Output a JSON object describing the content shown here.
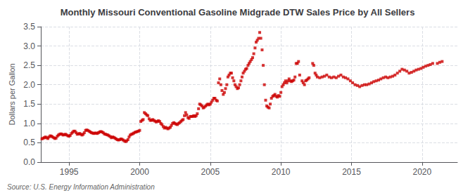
{
  "chart_data": {
    "type": "scatter",
    "title": "Monthly Missouri Conventional Gasoline Midgrade DTW Sales Price by All Sellers",
    "ylabel": "Dollars per Gallon",
    "annotations": [
      "Source: U.S. Energy Information Administration"
    ],
    "color": "#cc0000",
    "marker": "square",
    "grid": true,
    "xlim": [
      1993.0,
      2022.5
    ],
    "ylim": [
      0.0,
      3.5
    ],
    "xticks": [
      1995,
      2000,
      2005,
      2010,
      2015,
      2020
    ],
    "yticks": [
      {
        "value": 0.0,
        "label": "0.0"
      },
      0.5,
      {
        "value": 1.0,
        "label": "1.0"
      },
      1.5,
      {
        "value": 2.0,
        "label": "2.0"
      },
      2.5,
      {
        "value": 3.0,
        "label": "3.0"
      },
      3.5
    ],
    "x": [
      1993.08,
      1993.17,
      1993.25,
      1993.33,
      1993.42,
      1993.5,
      1993.58,
      1993.67,
      1993.75,
      1993.83,
      1993.92,
      1994.0,
      1994.08,
      1994.17,
      1994.25,
      1994.33,
      1994.42,
      1994.5,
      1994.58,
      1994.67,
      1994.75,
      1994.83,
      1994.92,
      1995.0,
      1995.08,
      1995.17,
      1995.25,
      1995.33,
      1995.42,
      1995.5,
      1995.58,
      1995.67,
      1995.75,
      1995.83,
      1995.92,
      1996.0,
      1996.08,
      1996.17,
      1996.25,
      1996.33,
      1996.42,
      1996.5,
      1996.58,
      1996.67,
      1996.75,
      1996.83,
      1996.92,
      1997.0,
      1997.08,
      1997.17,
      1997.25,
      1997.33,
      1997.42,
      1997.5,
      1997.58,
      1997.67,
      1997.75,
      1997.83,
      1997.92,
      1998.0,
      1998.08,
      1998.17,
      1998.25,
      1998.33,
      1998.42,
      1998.5,
      1998.58,
      1998.67,
      1998.75,
      1998.83,
      1998.92,
      1999.0,
      1999.08,
      1999.17,
      1999.25,
      1999.33,
      1999.42,
      1999.5,
      1999.58,
      1999.67,
      1999.75,
      1999.83,
      1999.92,
      2000.0,
      2000.08,
      2000.17,
      2000.25,
      2000.33,
      2000.42,
      2000.5,
      2000.58,
      2000.67,
      2000.75,
      2000.83,
      2000.92,
      2001.0,
      2001.08,
      2001.17,
      2001.25,
      2001.33,
      2001.42,
      2001.5,
      2001.58,
      2001.67,
      2001.75,
      2001.83,
      2001.92,
      2002.0,
      2002.08,
      2002.17,
      2002.25,
      2002.33,
      2002.42,
      2002.5,
      2002.58,
      2002.67,
      2002.75,
      2002.83,
      2002.92,
      2003.0,
      2003.08,
      2003.17,
      2003.25,
      2003.33,
      2003.42,
      2003.5,
      2003.58,
      2003.67,
      2003.75,
      2003.83,
      2003.92,
      2004.0,
      2004.08,
      2004.17,
      2004.25,
      2004.33,
      2004.42,
      2004.5,
      2004.58,
      2004.67,
      2004.75,
      2004.83,
      2004.92,
      2005.0,
      2005.08,
      2005.17,
      2005.25,
      2005.33,
      2005.42,
      2005.5,
      2005.58,
      2005.67,
      2005.75,
      2005.83,
      2005.92,
      2006.0,
      2006.08,
      2006.17,
      2006.25,
      2006.33,
      2006.42,
      2006.5,
      2006.58,
      2006.67,
      2006.75,
      2006.83,
      2006.92,
      2007.0,
      2007.08,
      2007.17,
      2007.25,
      2007.33,
      2007.42,
      2007.5,
      2007.58,
      2007.67,
      2007.75,
      2007.83,
      2007.92,
      2008.0,
      2008.08,
      2008.17,
      2008.25,
      2008.33,
      2008.42,
      2008.5,
      2008.58,
      2008.67,
      2008.75,
      2008.83,
      2008.92,
      2009.0,
      2009.08,
      2009.17,
      2009.25,
      2009.33,
      2009.42,
      2009.5,
      2009.58,
      2009.67,
      2009.75,
      2009.83,
      2009.92,
      2010.0,
      2010.08,
      2010.17,
      2010.25,
      2010.33,
      2010.42,
      2010.5,
      2010.58,
      2010.67,
      2010.75,
      2010.83,
      2010.92,
      2011.0,
      2011.08,
      2011.17,
      2011.25,
      2011.33,
      2011.5,
      2011.58,
      2011.67,
      2011.75,
      2011.83,
      2011.92,
      2012.0,
      2012.25,
      2012.33,
      2012.42,
      2012.5,
      2012.58,
      2012.75,
      2012.92,
      2013.08,
      2013.25,
      2013.42,
      2013.58,
      2013.75,
      2013.92,
      2014.08,
      2014.25,
      2014.42,
      2014.58,
      2014.75,
      2014.92,
      2015.08,
      2015.25,
      2015.42,
      2015.58,
      2015.75,
      2015.92,
      2016.08,
      2016.25,
      2016.42,
      2016.58,
      2016.75,
      2016.92,
      2017.08,
      2017.25,
      2017.42,
      2017.58,
      2017.75,
      2017.92,
      2018.08,
      2018.25,
      2018.42,
      2018.58,
      2018.75,
      2018.92,
      2019.08,
      2019.25,
      2019.42,
      2019.58,
      2019.75,
      2019.92,
      2020.08,
      2020.25,
      2020.42,
      2020.58,
      2020.75,
      2021.08,
      2021.25,
      2021.42
    ],
    "values": [
      0.6,
      0.62,
      0.63,
      0.65,
      0.63,
      0.61,
      0.65,
      0.68,
      0.67,
      0.65,
      0.63,
      0.61,
      0.62,
      0.67,
      0.7,
      0.72,
      0.73,
      0.72,
      0.7,
      0.71,
      0.72,
      0.7,
      0.68,
      0.67,
      0.69,
      0.74,
      0.77,
      0.8,
      0.8,
      0.76,
      0.72,
      0.73,
      0.74,
      0.72,
      0.7,
      0.72,
      0.76,
      0.82,
      0.83,
      0.82,
      0.8,
      0.78,
      0.76,
      0.75,
      0.74,
      0.75,
      0.75,
      0.74,
      0.76,
      0.78,
      0.79,
      0.78,
      0.76,
      0.73,
      0.72,
      0.71,
      0.7,
      0.68,
      0.66,
      0.63,
      0.65,
      0.64,
      0.62,
      0.6,
      0.58,
      0.57,
      0.58,
      0.6,
      0.59,
      0.57,
      0.55,
      0.53,
      0.55,
      0.58,
      0.65,
      0.7,
      0.72,
      0.73,
      0.75,
      0.77,
      0.78,
      0.79,
      0.8,
      0.82,
      1.05,
      1.08,
      1.1,
      1.28,
      1.25,
      1.22,
      1.2,
      1.12,
      1.08,
      1.08,
      1.1,
      1.08,
      1.06,
      1.04,
      1.05,
      1.07,
      1.05,
      1.0,
      0.97,
      0.92,
      0.88,
      0.9,
      0.88,
      0.86,
      0.88,
      0.9,
      0.95,
      1.0,
      1.02,
      1.0,
      0.98,
      0.97,
      1.0,
      1.02,
      1.05,
      1.08,
      1.1,
      1.2,
      1.28,
      1.22,
      1.15,
      1.13,
      1.18,
      1.18,
      1.18,
      1.2,
      1.18,
      1.2,
      1.25,
      1.38,
      1.5,
      1.48,
      1.45,
      1.4,
      1.42,
      1.45,
      1.48,
      1.5,
      1.48,
      1.5,
      1.55,
      1.6,
      1.65,
      1.65,
      1.6,
      1.58,
      2.05,
      2.15,
      2.0,
      1.85,
      1.75,
      1.8,
      1.9,
      2.0,
      2.2,
      2.25,
      2.3,
      2.3,
      2.18,
      2.1,
      2.0,
      1.95,
      1.9,
      1.92,
      2.0,
      2.1,
      2.2,
      2.3,
      2.35,
      2.4,
      2.42,
      2.5,
      2.55,
      2.6,
      2.65,
      2.7,
      2.8,
      2.95,
      3.1,
      3.15,
      3.2,
      3.35,
      3.2,
      2.9,
      2.5,
      2.0,
      1.6,
      1.45,
      1.42,
      1.4,
      1.5,
      1.65,
      1.7,
      1.72,
      1.75,
      1.7,
      1.68,
      1.72,
      1.7,
      1.8,
      1.95,
      2.0,
      2.05,
      2.1,
      2.05,
      2.1,
      2.15,
      2.1,
      2.08,
      2.1,
      2.12,
      2.2,
      2.55,
      2.55,
      2.6,
      2.25,
      2.1,
      2.05,
      2.0,
      2.1,
      2.12,
      2.15,
      2.18,
      2.55,
      2.5,
      2.3,
      2.25,
      2.2,
      2.18,
      2.2,
      2.22,
      2.25,
      2.2,
      2.18,
      2.2,
      2.18,
      2.22,
      2.25,
      2.2,
      2.18,
      2.15,
      2.1,
      2.05,
      2.0,
      1.98,
      1.95,
      1.98,
      2.0,
      2.0,
      2.02,
      2.05,
      2.08,
      2.1,
      2.12,
      2.15,
      2.18,
      2.2,
      2.18,
      2.2,
      2.22,
      2.25,
      2.3,
      2.35,
      2.4,
      2.38,
      2.35,
      2.3,
      2.32,
      2.35,
      2.38,
      2.4,
      2.42,
      2.45,
      2.48,
      2.5,
      2.52,
      2.55,
      2.55,
      2.58,
      2.6
    ]
  }
}
